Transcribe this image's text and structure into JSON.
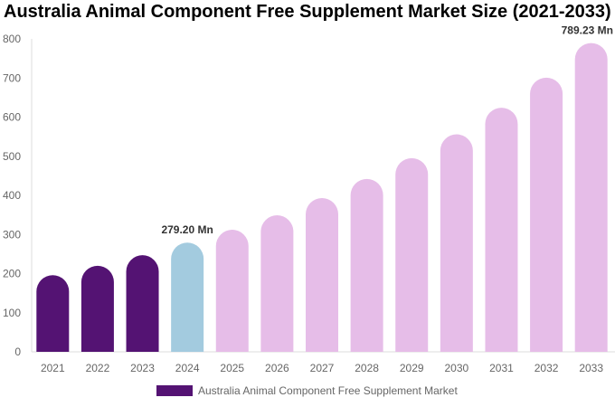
{
  "chart_data": {
    "type": "bar",
    "title": "Australia Animal Component Free Supplement Market Size (2021-2033)",
    "categories": [
      "2021",
      "2022",
      "2023",
      "2024",
      "2025",
      "2026",
      "2027",
      "2028",
      "2029",
      "2030",
      "2031",
      "2032",
      "2033"
    ],
    "series": [
      {
        "name": "Australia Animal Component Free Supplement Market",
        "values": [
          196,
          220,
          247,
          279.2,
          312,
          349,
          393,
          442,
          495,
          556,
          624,
          701,
          789.23
        ]
      }
    ],
    "bar_colors": [
      "#541373",
      "#541373",
      "#541373",
      "#a3cbdf",
      "#e6bde8",
      "#e6bde8",
      "#e6bde8",
      "#e6bde8",
      "#e6bde8",
      "#e6bde8",
      "#e6bde8",
      "#e6bde8",
      "#e6bde8"
    ],
    "data_labels": [
      {
        "category": "2024",
        "text": "279.20 Mn"
      },
      {
        "category": "2033",
        "text": "789.23 Mn"
      }
    ],
    "yticks": [
      0,
      100,
      200,
      300,
      400,
      500,
      600,
      700,
      800
    ],
    "ylim": [
      0,
      800
    ],
    "xlabel": "",
    "ylabel": "",
    "grid": false,
    "legend_position": "bottom"
  }
}
